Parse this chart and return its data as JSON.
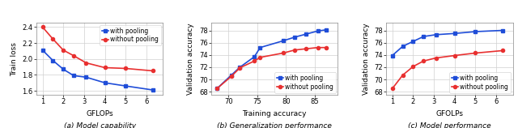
{
  "plot_a": {
    "caption": "(a) Model capability",
    "xlabel": "GFLOPs",
    "ylabel": "Train loss",
    "xlim": [
      0.7,
      6.8
    ],
    "ylim": [
      1.55,
      2.45
    ],
    "yticks": [
      1.6,
      1.8,
      2.0,
      2.2,
      2.4
    ],
    "xticks": [
      1,
      2,
      3,
      4,
      5,
      6
    ],
    "blue_x": [
      1.0,
      1.5,
      2.0,
      2.5,
      3.1,
      4.0,
      5.0,
      6.3
    ],
    "blue_y": [
      2.11,
      1.98,
      1.87,
      1.79,
      1.77,
      1.7,
      1.66,
      1.61
    ],
    "red_x": [
      1.0,
      1.5,
      2.0,
      2.5,
      3.1,
      4.0,
      5.0,
      6.3
    ],
    "red_y": [
      2.4,
      2.25,
      2.11,
      2.04,
      1.95,
      1.89,
      1.88,
      1.85
    ],
    "legend_loc": "upper right"
  },
  "plot_b": {
    "caption": "(b) Generalization performance",
    "xlabel": "Training accuracy",
    "ylabel": "Validation accuracy",
    "xlim": [
      67,
      89
    ],
    "ylim": [
      67.5,
      79.2
    ],
    "yticks": [
      68,
      70,
      72,
      74,
      76,
      78
    ],
    "xticks": [
      70,
      75,
      80,
      85
    ],
    "blue_x": [
      68.0,
      70.5,
      72.0,
      74.5,
      75.5,
      79.5,
      81.5,
      83.5,
      85.5,
      87.0
    ],
    "blue_y": [
      68.5,
      70.7,
      72.0,
      73.7,
      75.2,
      76.3,
      76.9,
      77.4,
      77.9,
      78.1
    ],
    "red_x": [
      68.0,
      70.5,
      72.0,
      74.5,
      75.5,
      79.5,
      81.5,
      83.5,
      85.5,
      87.0
    ],
    "red_y": [
      68.5,
      70.5,
      71.9,
      73.0,
      73.6,
      74.3,
      74.8,
      75.0,
      75.2,
      75.2
    ],
    "legend_loc": "lower right"
  },
  "plot_c": {
    "caption": "(c) Model performance",
    "xlabel": "GFOLPs",
    "ylabel": "Validation accuracy",
    "xlim": [
      0.7,
      6.8
    ],
    "ylim": [
      67.5,
      79.2
    ],
    "yticks": [
      68,
      70,
      72,
      74,
      76,
      78
    ],
    "xticks": [
      1,
      2,
      3,
      4,
      5,
      6
    ],
    "blue_x": [
      1.0,
      1.5,
      2.0,
      2.5,
      3.1,
      4.0,
      5.0,
      6.3
    ],
    "blue_y": [
      73.9,
      75.4,
      76.2,
      77.0,
      77.3,
      77.5,
      77.8,
      78.0
    ],
    "red_x": [
      1.0,
      1.5,
      2.0,
      2.5,
      3.1,
      4.0,
      5.0,
      6.3
    ],
    "red_y": [
      68.5,
      70.7,
      72.1,
      73.0,
      73.5,
      73.9,
      74.3,
      74.7
    ],
    "legend_loc": "lower right"
  },
  "blue_color": "#1f4dd8",
  "red_color": "#e83030",
  "legend_with": "with pooling",
  "legend_without": "without pooling",
  "grid_color": "#d0d0d0",
  "marker_size": 3,
  "line_width": 1.2
}
